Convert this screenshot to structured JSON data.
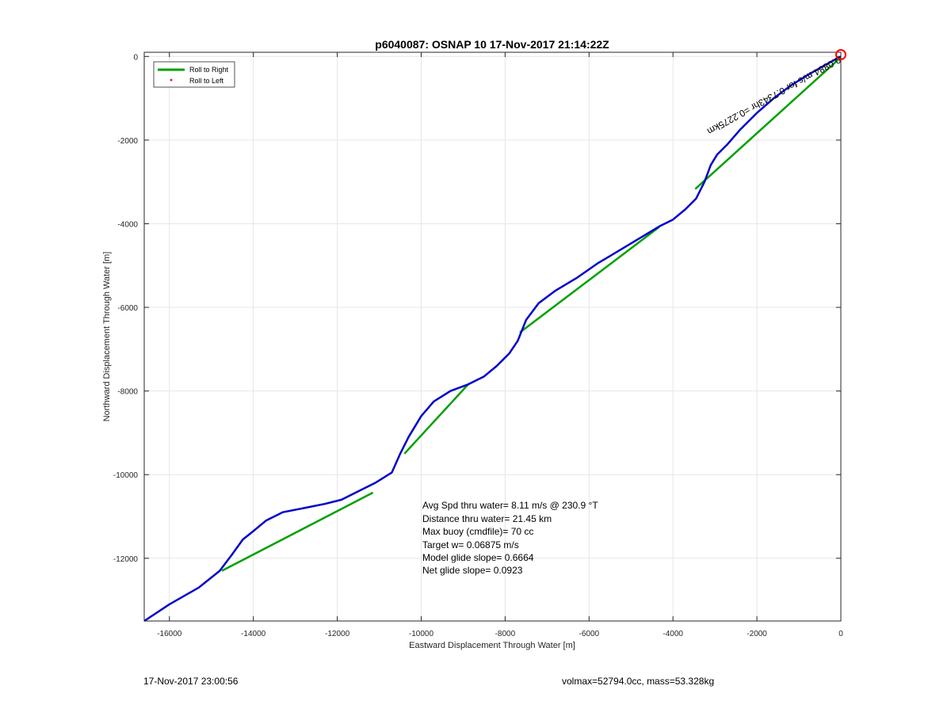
{
  "chart_data": {
    "type": "line",
    "title": "p6040087: OSNAP 10 17-Nov-2017 21:14:22Z",
    "xlabel": "Eastward Displacement Through Water [m]",
    "ylabel": "Northward Displacement Through Water [m]",
    "xlim": [
      -16600,
      0
    ],
    "ylim": [
      -13500,
      100
    ],
    "xticks": [
      -16000,
      -14000,
      -12000,
      -10000,
      -8000,
      -6000,
      -4000,
      -2000,
      0
    ],
    "yticks": [
      0,
      -2000,
      -4000,
      -6000,
      -8000,
      -10000,
      -12000
    ],
    "grid": true,
    "legend_position": "top-left",
    "legend": [
      {
        "label": "Roll to Right",
        "color": "#00a000",
        "style": "line"
      },
      {
        "label": "Roll to Left",
        "color": "#ff0000",
        "style": "dot"
      }
    ],
    "series": [
      {
        "name": "Roll to Right",
        "color": "#00a000",
        "segments": [
          [
            [
              -14750,
              -12300
            ],
            [
              -11150,
              -10430
            ]
          ],
          [
            [
              -10400,
              -9500
            ],
            [
              -8870,
              -7830
            ]
          ],
          [
            [
              -7650,
              -6600
            ],
            [
              -4330,
              -4080
            ]
          ],
          [
            [
              -3470,
              -3170
            ],
            [
              0,
              -20
            ]
          ]
        ]
      },
      {
        "name": "Roll to Left",
        "color": "#ff0000",
        "points": []
      },
      {
        "color": "#0000cc",
        "x": [
          -16600,
          -16000,
          -15300,
          -14800,
          -14500,
          -14250,
          -14000,
          -13700,
          -13300,
          -12800,
          -12300,
          -11900,
          -11500,
          -11100,
          -10700,
          -10500,
          -10300,
          -10000,
          -9700,
          -9300,
          -8900,
          -8500,
          -8200,
          -7900,
          -7700,
          -7500,
          -7200,
          -6800,
          -6300,
          -5800,
          -5300,
          -4800,
          -4300,
          -4000,
          -3700,
          -3450,
          -3250,
          -3100,
          -2950,
          -2700,
          -2400,
          -2000,
          -1600,
          -1200,
          -800,
          -400,
          -150,
          0
        ],
        "y": [
          -13500,
          -13100,
          -12700,
          -12300,
          -11900,
          -11550,
          -11350,
          -11100,
          -10900,
          -10800,
          -10700,
          -10600,
          -10400,
          -10200,
          -9950,
          -9500,
          -9100,
          -8600,
          -8250,
          -8000,
          -7850,
          -7650,
          -7400,
          -7100,
          -6800,
          -6300,
          -5900,
          -5600,
          -5300,
          -4950,
          -4650,
          -4350,
          -4050,
          -3900,
          -3650,
          -3400,
          -3000,
          -2600,
          -2350,
          -2100,
          -1750,
          -1350,
          -1000,
          -700,
          -450,
          -220,
          -80,
          0
        ]
      }
    ],
    "annotations": {
      "stats": [
        "Avg Spd thru water=  8.11 m/s @ 230.9 °T",
        "Distance thru water= 21.45 km",
        "Max buoy (cmdfile)= 70 cc",
        "Target w= 0.06875 m/s",
        "Model glide slope= 0.6664",
        "Net glide slope= 0.0923"
      ],
      "rotated_label": "0.0884 m/s for 0.7343hr =0.2275km",
      "marker_color": "#ff0000"
    }
  },
  "footer": {
    "left": "17-Nov-2017 23:00:56",
    "right": "volmax=52794.0cc, mass=53.328kg"
  }
}
